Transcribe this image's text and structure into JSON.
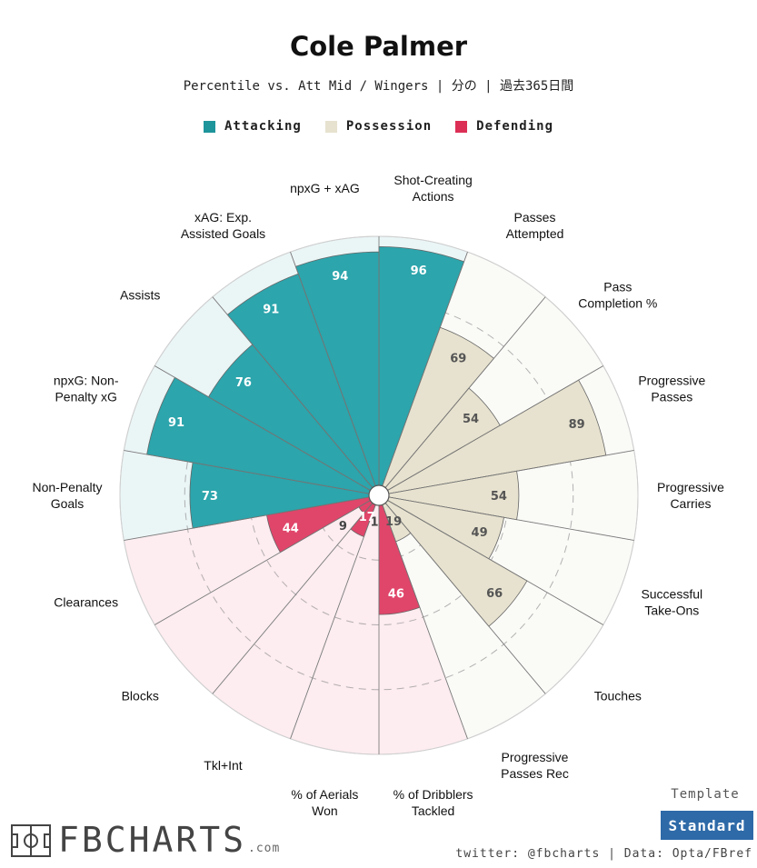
{
  "title": "Cole Palmer",
  "subtitle": "Percentile vs. Att Mid / Wingers | 分の | 過去365日間",
  "legend": [
    {
      "label": "Attacking",
      "color": "#2ca5ac"
    },
    {
      "label": "Possession",
      "color": "#e7e2cf"
    },
    {
      "label": "Defending",
      "color": "#e0456a"
    }
  ],
  "chart_data": {
    "type": "pizza",
    "range": [
      0,
      100
    ],
    "stats": [
      {
        "label": [
          "Shot-Creating",
          "Actions"
        ],
        "value": 96,
        "group": "Attacking"
      },
      {
        "label": [
          "Passes",
          "Attempted"
        ],
        "value": 69,
        "group": "Possession"
      },
      {
        "label": [
          "Pass",
          "Completion %"
        ],
        "value": 54,
        "group": "Possession"
      },
      {
        "label": [
          "Progressive",
          "Passes"
        ],
        "value": 89,
        "group": "Possession"
      },
      {
        "label": [
          "Progressive",
          "Carries"
        ],
        "value": 54,
        "group": "Possession"
      },
      {
        "label": [
          "Successful",
          "Take-Ons"
        ],
        "value": 49,
        "group": "Possession"
      },
      {
        "label": [
          "Touches"
        ],
        "value": 66,
        "group": "Possession"
      },
      {
        "label": [
          "Progressive",
          "Passes Rec"
        ],
        "value": 19,
        "group": "Possession"
      },
      {
        "label": [
          "% of Dribblers",
          "Tackled"
        ],
        "value": 46,
        "group": "Defending"
      },
      {
        "label": [
          "% of Aerials",
          "Won"
        ],
        "value": 1,
        "group": "Defending"
      },
      {
        "label": [
          "Tkl+Int"
        ],
        "value": 17,
        "group": "Defending"
      },
      {
        "label": [
          "Blocks"
        ],
        "value": 9,
        "group": "Defending"
      },
      {
        "label": [
          "Clearances"
        ],
        "value": 44,
        "group": "Defending"
      },
      {
        "label": [
          "Non-Penalty",
          "Goals"
        ],
        "value": 73,
        "group": "Attacking"
      },
      {
        "label": [
          "npxG: Non-",
          "Penalty xG"
        ],
        "value": 91,
        "group": "Attacking"
      },
      {
        "label": [
          "Assists"
        ],
        "value": 76,
        "group": "Attacking"
      },
      {
        "label": [
          "xAG: Exp.",
          "Assisted Goals"
        ],
        "value": 91,
        "group": "Attacking"
      },
      {
        "label": [
          "npxG + xAG"
        ],
        "value": 94,
        "group": "Attacking"
      }
    ]
  },
  "template": {
    "label": "Template",
    "button": "Standard"
  },
  "credit": "twitter: @fbcharts | Data: Opta/FBref",
  "logo": {
    "text": "FBCHARTS",
    "suffix": ".com"
  }
}
